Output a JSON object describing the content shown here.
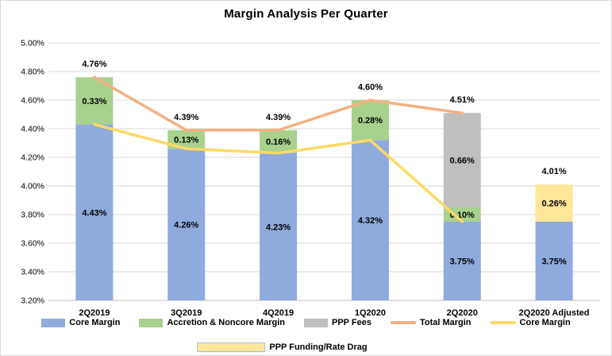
{
  "window": {
    "background": "#ffffff",
    "border_color": "#d9d9d9",
    "gridline_color": "#d9d9d9",
    "axisline_color": "#bfbfbf",
    "text_color": "#000000"
  },
  "chart_data": {
    "type": "bar",
    "subtype": "stacked-column-with-line-overlay",
    "title": "Margin Analysis Per Quarter",
    "categories": [
      "2Q2019",
      "3Q2019",
      "4Q2019",
      "1Q2020",
      "2Q2020",
      "2Q2020 Adjusted"
    ],
    "bar_series": [
      {
        "name": "Core Margin",
        "color": "#8faadc",
        "values": [
          4.43,
          4.26,
          4.23,
          4.32,
          3.75,
          3.75
        ],
        "labels": [
          "4.43%",
          "4.26%",
          "4.23%",
          "4.32%",
          "3.75%",
          "3.75%"
        ]
      },
      {
        "name": "Accretion & Noncore Margin",
        "color": "#a9d18e",
        "values": [
          0.33,
          0.13,
          0.16,
          0.28,
          0.1,
          null
        ],
        "labels": [
          "0.33%",
          "0.13%",
          "0.16%",
          "0.28%",
          "0.10%",
          ""
        ]
      },
      {
        "name": "PPP Fees",
        "color": "#bfbfbf",
        "values": [
          null,
          null,
          null,
          null,
          0.66,
          null
        ],
        "labels": [
          "",
          "",
          "",
          "",
          "0.66%",
          ""
        ]
      },
      {
        "name": "PPP Funding/Rate Drag",
        "color": "#ffe699",
        "values": [
          null,
          null,
          null,
          null,
          null,
          0.26
        ],
        "labels": [
          "",
          "",
          "",
          "",
          "",
          "0.26%"
        ]
      }
    ],
    "line_series": [
      {
        "name": "Total Margin",
        "color": "#f4b183",
        "values": [
          4.76,
          4.39,
          4.39,
          4.6,
          4.51,
          null
        ]
      },
      {
        "name": "Core Margin",
        "color": "#ffd966",
        "values": [
          4.43,
          4.26,
          4.23,
          4.32,
          3.75,
          null
        ]
      }
    ],
    "total_labels": [
      "4.76%",
      "4.39%",
      "4.39%",
      "4.60%",
      "4.51%",
      "4.01%"
    ],
    "y_axis": {
      "min": 3.2,
      "max": 5.0,
      "step": 0.2,
      "tick_labels": [
        "5.00%",
        "4.80%",
        "4.60%",
        "4.40%",
        "4.20%",
        "4.00%",
        "3.80%",
        "3.60%",
        "3.40%",
        "3.20%"
      ]
    },
    "grid": true,
    "legend_position": "bottom",
    "legend": {
      "rows": [
        [
          {
            "label": "Core Margin",
            "swatch": "rect",
            "color": "#8faadc"
          },
          {
            "label": "Accretion & Noncore Margin",
            "swatch": "rect",
            "color": "#a9d18e"
          },
          {
            "label": "PPP Fees",
            "swatch": "rect",
            "color": "#bfbfbf"
          },
          {
            "label": "Total Margin",
            "swatch": "line",
            "color": "#f4b183"
          },
          {
            "label": "Core Margin",
            "swatch": "line",
            "color": "#ffd966"
          }
        ],
        [
          {
            "label": "PPP Funding/Rate Drag",
            "swatch": "rect-wide",
            "color": "#ffe699",
            "border": "#9dc3e6"
          }
        ]
      ]
    }
  }
}
